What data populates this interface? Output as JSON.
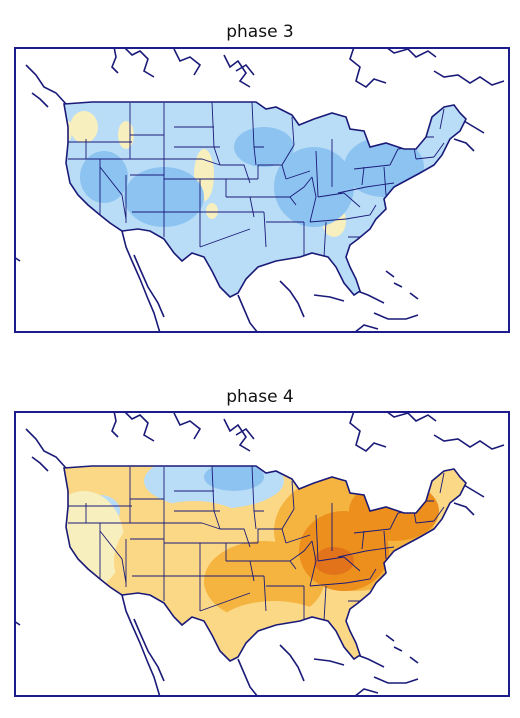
{
  "panels": [
    {
      "title": "phase 3",
      "pattern": "cool"
    },
    {
      "title": "phase 4",
      "pattern": "warm"
    }
  ],
  "colors": {
    "outline": "#1a1a78",
    "frame": "#1c1c8c",
    "ocean": "#ffffff",
    "cool_light": "#b9dcf7",
    "cool_mid": "#8cc3f0",
    "neutral": "#f7efbd",
    "warm_light": "#fbd886",
    "warm_mid": "#f5b440",
    "warm_deep": "#ec8f1c",
    "warm_peak": "#e2731a"
  }
}
